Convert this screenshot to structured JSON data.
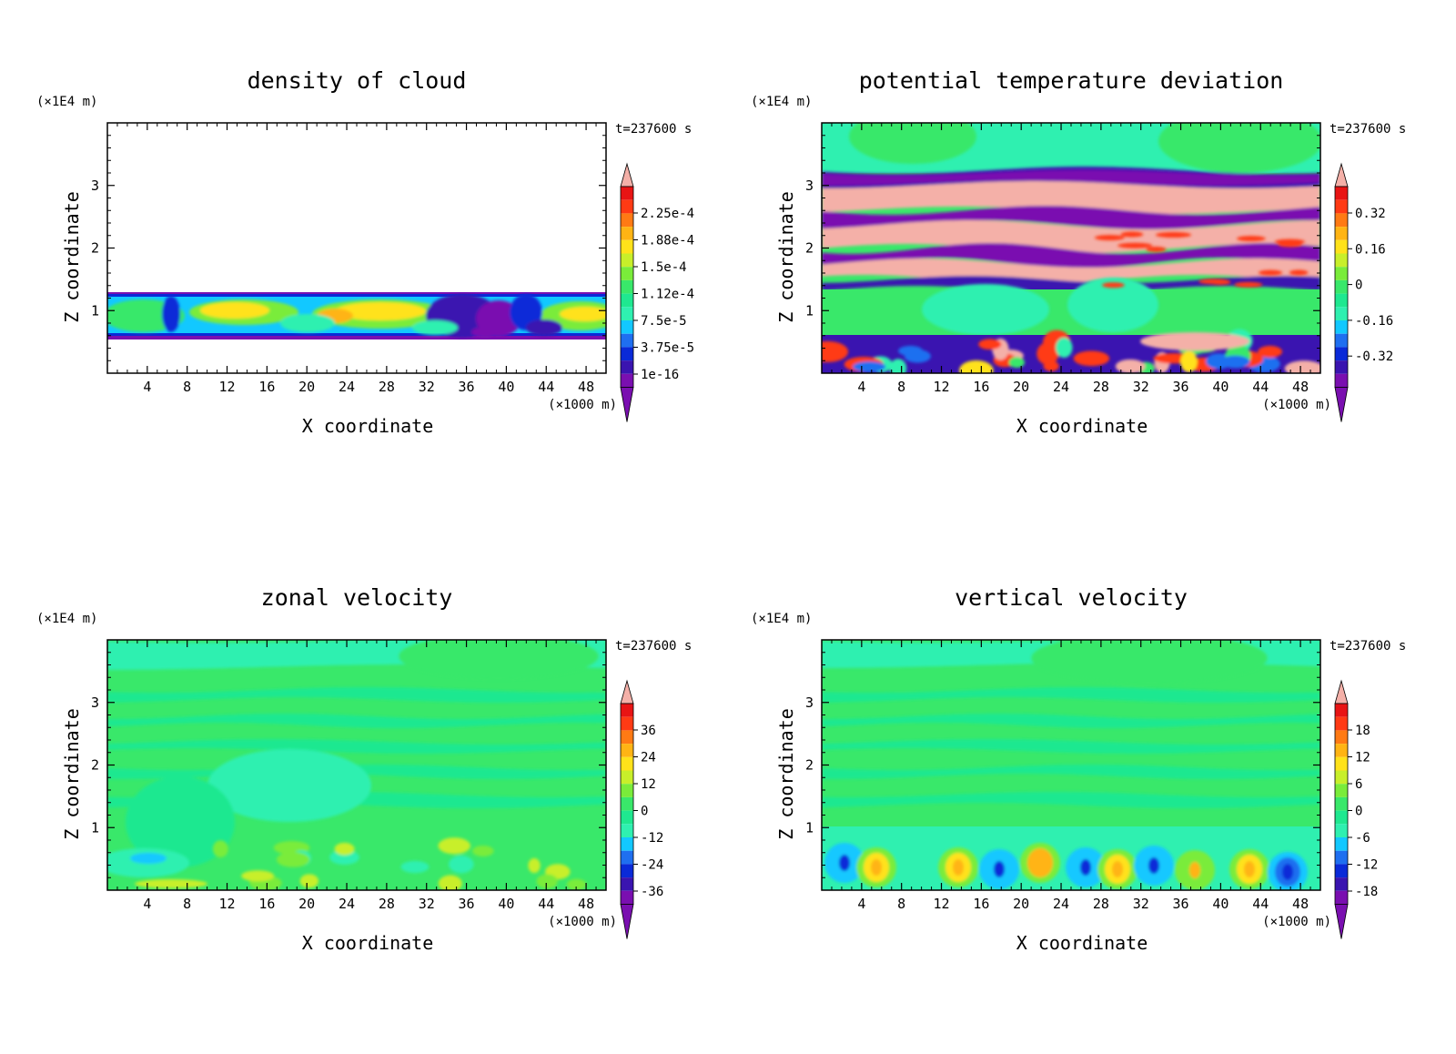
{
  "chart_data": [
    {
      "type": "heatmap",
      "title": "density of cloud",
      "xlabel": "X coordinate",
      "ylabel": "Z coordinate",
      "x_unit": "(×1000 m)",
      "y_unit": "(×1E4 m)",
      "time_label": "t=237600 s",
      "xlim": [
        0,
        50
      ],
      "ylim": [
        0,
        4
      ],
      "x_ticks": [
        "4",
        "8",
        "12",
        "16",
        "20",
        "24",
        "28",
        "32",
        "36",
        "40",
        "44",
        "48"
      ],
      "y_ticks": [
        "1",
        "2",
        "3"
      ],
      "colorbar_labels": [
        "2.25e-4",
        "1.88e-4",
        "1.5e-4",
        "1.12e-4",
        "7.5e-5",
        "3.75e-5",
        "1e-16"
      ],
      "field": "cloud"
    },
    {
      "type": "heatmap",
      "title": "potential temperature deviation",
      "xlabel": "X coordinate",
      "ylabel": "Z coordinate",
      "x_unit": "(×1000 m)",
      "y_unit": "(×1E4 m)",
      "time_label": "t=237600 s",
      "xlim": [
        0,
        50
      ],
      "ylim": [
        0,
        4
      ],
      "x_ticks": [
        "4",
        "8",
        "12",
        "16",
        "20",
        "24",
        "28",
        "32",
        "36",
        "40",
        "44",
        "48"
      ],
      "y_ticks": [
        "1",
        "2",
        "3"
      ],
      "colorbar_labels": [
        "0.32",
        "0.16",
        "0",
        "-0.16",
        "-0.32"
      ],
      "field": "theta"
    },
    {
      "type": "heatmap",
      "title": "zonal velocity",
      "xlabel": "X coordinate",
      "ylabel": "Z coordinate",
      "x_unit": "(×1000 m)",
      "y_unit": "(×1E4 m)",
      "time_label": "t=237600 s",
      "xlim": [
        0,
        50
      ],
      "ylim": [
        0,
        4
      ],
      "x_ticks": [
        "4",
        "8",
        "12",
        "16",
        "20",
        "24",
        "28",
        "32",
        "36",
        "40",
        "44",
        "48"
      ],
      "y_ticks": [
        "1",
        "2",
        "3"
      ],
      "colorbar_labels": [
        "36",
        "24",
        "12",
        "0",
        "-12",
        "-24",
        "-36"
      ],
      "field": "u"
    },
    {
      "type": "heatmap",
      "title": "vertical velocity",
      "xlabel": "X coordinate",
      "ylabel": "Z coordinate",
      "x_unit": "(×1000 m)",
      "y_unit": "(×1E4 m)",
      "time_label": "t=237600 s",
      "xlim": [
        0,
        50
      ],
      "ylim": [
        0,
        4
      ],
      "x_ticks": [
        "4",
        "8",
        "12",
        "16",
        "20",
        "24",
        "28",
        "32",
        "36",
        "40",
        "44",
        "48"
      ],
      "y_ticks": [
        "1",
        "2",
        "3"
      ],
      "colorbar_labels": [
        "18",
        "12",
        "6",
        "0",
        "-6",
        "-12",
        "-18"
      ],
      "field": "w"
    }
  ],
  "colors": {
    "palette": [
      "#7a0fb0",
      "#3a14b0",
      "#0a2ad8",
      "#1f6ff0",
      "#12c8ff",
      "#2ff0b0",
      "#1fe890",
      "#39e86a",
      "#7aec3a",
      "#c8ef2a",
      "#ffe21a",
      "#ffb414",
      "#ff7a14",
      "#ff3a14",
      "#e81414",
      "#f4b0a8"
    ],
    "background": "#ffffff",
    "axis": "#000000"
  }
}
